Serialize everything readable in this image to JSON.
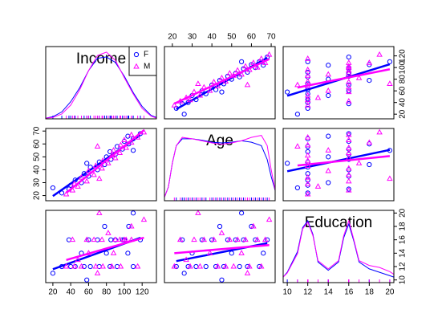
{
  "chart_data": {
    "type": "scatter_matrix",
    "variables": [
      {
        "name": "Income",
        "lim": [
          12,
          136
        ],
        "ticks": [
          20,
          40,
          60,
          80,
          100,
          120
        ],
        "density": {
          "x": [
            12,
            20,
            30,
            40,
            50,
            60,
            70,
            80,
            90,
            100,
            110,
            120,
            130,
            136
          ],
          "F": [
            0.01,
            0.03,
            0.1,
            0.25,
            0.45,
            0.7,
            0.88,
            0.9,
            0.82,
            0.62,
            0.38,
            0.18,
            0.05,
            0.02
          ],
          "M": [
            0.01,
            0.02,
            0.07,
            0.2,
            0.42,
            0.7,
            0.92,
            0.97,
            0.85,
            0.6,
            0.36,
            0.15,
            0.04,
            0.01
          ]
        }
      },
      {
        "name": "Age",
        "lim": [
          16,
          72
        ],
        "ticks": [
          20,
          30,
          40,
          50,
          60,
          70
        ],
        "density": {
          "x": [
            16,
            18,
            20,
            22,
            25,
            30,
            35,
            40,
            45,
            50,
            55,
            60,
            65,
            68,
            70,
            72
          ],
          "F": [
            0.05,
            0.2,
            0.55,
            0.8,
            0.9,
            0.9,
            0.88,
            0.85,
            0.84,
            0.85,
            0.87,
            0.85,
            0.8,
            0.6,
            0.35,
            0.15
          ],
          "M": [
            0.05,
            0.2,
            0.55,
            0.8,
            0.92,
            0.9,
            0.87,
            0.84,
            0.82,
            0.84,
            0.87,
            0.92,
            0.95,
            0.8,
            0.45,
            0.15
          ]
        }
      },
      {
        "name": "Education",
        "lim": [
          9.6,
          20.4
        ],
        "ticks": [
          10,
          12,
          14,
          16,
          18,
          20
        ],
        "density": {
          "x": [
            9.6,
            10,
            11,
            11.5,
            12,
            12.5,
            13,
            14,
            15,
            15.5,
            16,
            16.5,
            17,
            18,
            19,
            20,
            20.4
          ],
          "F": [
            0.08,
            0.15,
            0.45,
            0.8,
            0.9,
            0.7,
            0.3,
            0.18,
            0.3,
            0.65,
            0.85,
            0.6,
            0.3,
            0.2,
            0.15,
            0.1,
            0.08
          ],
          "M": [
            0.08,
            0.14,
            0.42,
            0.78,
            0.88,
            0.68,
            0.32,
            0.2,
            0.32,
            0.68,
            0.9,
            0.62,
            0.32,
            0.25,
            0.22,
            0.16,
            0.12
          ]
        }
      }
    ],
    "density_ylim": [
      0,
      1.05
    ],
    "series": [
      {
        "name": "F",
        "color": "#0000ff",
        "marker": "circle",
        "values": [
          [
            30,
            38,
            40,
            52,
            45,
            60,
            55,
            70,
            62,
            78,
            72,
            85,
            80,
            90,
            84,
            98,
            92,
            105,
            100,
            110,
            104,
            118,
            20,
            58,
            110
          ],
          [
            22,
            25,
            28,
            30,
            32,
            35,
            37,
            40,
            42,
            44,
            46,
            48,
            50,
            52,
            54,
            56,
            58,
            60,
            62,
            64,
            66,
            68,
            26,
            45,
            55
          ],
          [
            12,
            16,
            12,
            14,
            12,
            16,
            12,
            16,
            12,
            18,
            12,
            16,
            14,
            16,
            12,
            16,
            12,
            18,
            16,
            12,
            14,
            16,
            11,
            10,
            20
          ]
        ]
      },
      {
        "name": "M",
        "color": "#ff00ff",
        "marker": "triangle",
        "values": [
          [
            35,
            42,
            48,
            44,
            58,
            52,
            66,
            60,
            75,
            68,
            82,
            76,
            90,
            86,
            95,
            88,
            102,
            96,
            108,
            100,
            115,
            108,
            122,
            72,
            70
          ],
          [
            21,
            24,
            27,
            29,
            31,
            34,
            36,
            39,
            41,
            43,
            45,
            47,
            49,
            51,
            53,
            55,
            57,
            59,
            61,
            63,
            65,
            67,
            69,
            33,
            58
          ],
          [
            12,
            16,
            13,
            12,
            16,
            12,
            16,
            14,
            16,
            12,
            17,
            12,
            16,
            12,
            16,
            14,
            16,
            12,
            18,
            16,
            12,
            16,
            19,
            20,
            11
          ]
        ]
      }
    ]
  }
}
